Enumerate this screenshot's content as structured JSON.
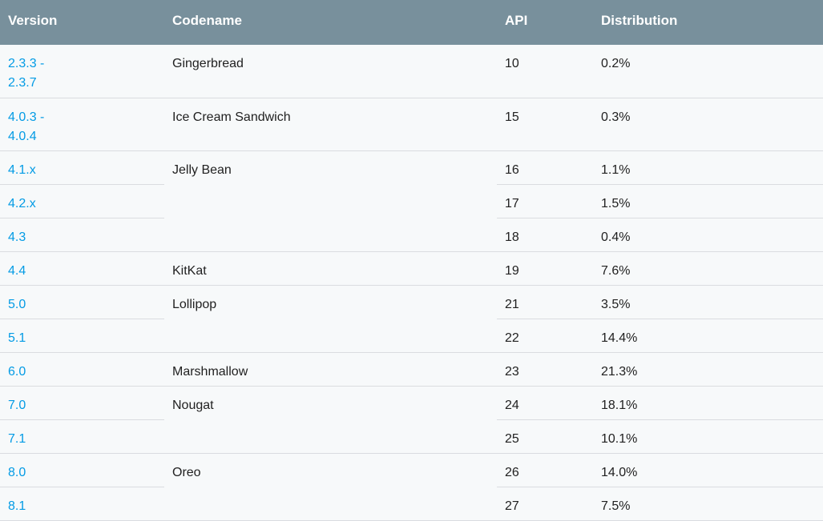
{
  "table": {
    "headers": {
      "version": "Version",
      "codename": "Codename",
      "api": "API",
      "distribution": "Distribution"
    },
    "rows": [
      {
        "version": "2.3.3 -\n2.3.7",
        "codename": "Gingerbread",
        "api": "10",
        "distribution": "0.2%"
      },
      {
        "version": "4.0.3 -\n4.0.4",
        "codename": "Ice Cream Sandwich",
        "api": "15",
        "distribution": "0.3%"
      },
      {
        "version": "4.1.x",
        "codename": "Jelly Bean",
        "api": "16",
        "distribution": "1.1%"
      },
      {
        "version": "4.2.x",
        "codename": "",
        "api": "17",
        "distribution": "1.5%"
      },
      {
        "version": "4.3",
        "codename": "",
        "api": "18",
        "distribution": "0.4%"
      },
      {
        "version": "4.4",
        "codename": "KitKat",
        "api": "19",
        "distribution": "7.6%"
      },
      {
        "version": "5.0",
        "codename": "Lollipop",
        "api": "21",
        "distribution": "3.5%"
      },
      {
        "version": "5.1",
        "codename": "",
        "api": "22",
        "distribution": "14.4%"
      },
      {
        "version": "6.0",
        "codename": "Marshmallow",
        "api": "23",
        "distribution": "21.3%"
      },
      {
        "version": "7.0",
        "codename": "Nougat",
        "api": "24",
        "distribution": "18.1%"
      },
      {
        "version": "7.1",
        "codename": "",
        "api": "25",
        "distribution": "10.1%"
      },
      {
        "version": "8.0",
        "codename": "Oreo",
        "api": "26",
        "distribution": "14.0%"
      },
      {
        "version": "8.1",
        "codename": "",
        "api": "27",
        "distribution": "7.5%"
      }
    ]
  },
  "colors": {
    "header_bg": "#78909c",
    "link": "#039be5",
    "text": "#212121",
    "page_bg": "#f7f9fa"
  }
}
